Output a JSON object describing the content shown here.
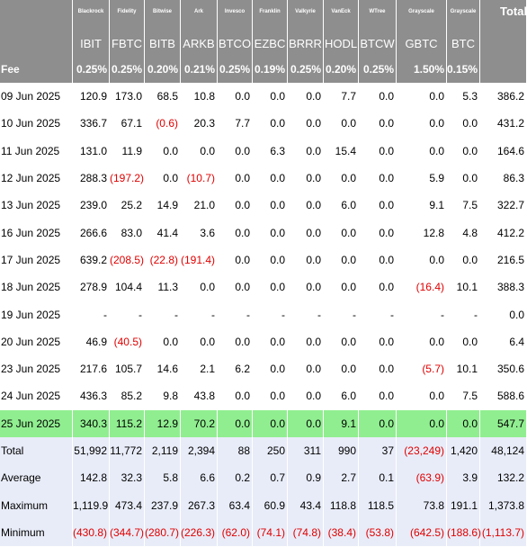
{
  "providers": [
    "Blackrock",
    "Fidelity",
    "Bitwise",
    "Ark",
    "Invesco",
    "Franklin",
    "Valkyrie",
    "VanEck",
    "WTree",
    "Grayscale",
    "Grayscale"
  ],
  "total_label": "Total",
  "tickers": [
    "IBIT",
    "FBTC",
    "BITB",
    "ARKB",
    "BTCO",
    "EZBC",
    "BRRR",
    "HODL",
    "BTCW",
    "GBTC",
    "BTC"
  ],
  "fee_label": "Fee",
  "fees": [
    "0.25%",
    "0.25%",
    "0.20%",
    "0.21%",
    "0.25%",
    "0.19%",
    "0.25%",
    "0.20%",
    "0.25%",
    "1.50%",
    "0.15%"
  ],
  "rows": [
    {
      "date": "09 Jun 2025",
      "cells": [
        "120.9",
        "173.0",
        "68.5",
        "10.8",
        "0.0",
        "0.0",
        "0.0",
        "7.7",
        "0.0",
        "0.0",
        "5.3",
        "386.2"
      ]
    },
    {
      "date": "10 Jun 2025",
      "cells": [
        "336.7",
        "67.1",
        "(0.6)",
        "20.3",
        "7.7",
        "0.0",
        "0.0",
        "0.0",
        "0.0",
        "0.0",
        "0.0",
        "431.2"
      ]
    },
    {
      "date": "11 Jun 2025",
      "cells": [
        "131.0",
        "11.9",
        "0.0",
        "0.0",
        "0.0",
        "6.3",
        "0.0",
        "15.4",
        "0.0",
        "0.0",
        "0.0",
        "164.6"
      ]
    },
    {
      "date": "12 Jun 2025",
      "cells": [
        "288.3",
        "(197.2)",
        "0.0",
        "(10.7)",
        "0.0",
        "0.0",
        "0.0",
        "0.0",
        "0.0",
        "5.9",
        "0.0",
        "86.3"
      ]
    },
    {
      "date": "13 Jun 2025",
      "cells": [
        "239.0",
        "25.2",
        "14.9",
        "21.0",
        "0.0",
        "0.0",
        "0.0",
        "6.0",
        "0.0",
        "9.1",
        "7.5",
        "322.7"
      ]
    },
    {
      "date": "16 Jun 2025",
      "cells": [
        "266.6",
        "83.0",
        "41.4",
        "3.6",
        "0.0",
        "0.0",
        "0.0",
        "0.0",
        "0.0",
        "12.8",
        "4.8",
        "412.2"
      ]
    },
    {
      "date": "17 Jun 2025",
      "cells": [
        "639.2",
        "(208.5)",
        "(22.8)",
        "(191.4)",
        "0.0",
        "0.0",
        "0.0",
        "0.0",
        "0.0",
        "0.0",
        "0.0",
        "216.5"
      ]
    },
    {
      "date": "18 Jun 2025",
      "cells": [
        "278.9",
        "104.4",
        "11.3",
        "0.0",
        "0.0",
        "0.0",
        "0.0",
        "0.0",
        "0.0",
        "(16.4)",
        "10.1",
        "388.3"
      ]
    },
    {
      "date": "19 Jun 2025",
      "cells": [
        "-",
        "-",
        "-",
        "-",
        "-",
        "-",
        "-",
        "-",
        "-",
        "-",
        "-",
        "0.0"
      ]
    },
    {
      "date": "20 Jun 2025",
      "cells": [
        "46.9",
        "(40.5)",
        "0.0",
        "0.0",
        "0.0",
        "0.0",
        "0.0",
        "0.0",
        "0.0",
        "0.0",
        "0.0",
        "6.4"
      ]
    },
    {
      "date": "23 Jun 2025",
      "cells": [
        "217.6",
        "105.7",
        "14.6",
        "2.1",
        "6.2",
        "0.0",
        "0.0",
        "0.0",
        "0.0",
        "(5.7)",
        "10.1",
        "350.6"
      ]
    },
    {
      "date": "24 Jun 2025",
      "cells": [
        "436.3",
        "85.2",
        "9.8",
        "43.8",
        "0.0",
        "0.0",
        "0.0",
        "6.0",
        "0.0",
        "0.0",
        "7.5",
        "588.6"
      ]
    },
    {
      "date": "25 Jun 2025",
      "cells": [
        "340.3",
        "115.2",
        "12.9",
        "70.2",
        "0.0",
        "0.0",
        "0.0",
        "9.1",
        "0.0",
        "0.0",
        "0.0",
        "547.7"
      ],
      "highlight": true
    }
  ],
  "summary": [
    {
      "label": "Total",
      "cells": [
        "51,992",
        "11,772",
        "2,119",
        "2,394",
        "88",
        "250",
        "311",
        "990",
        "37",
        "(23,249)",
        "1,420",
        "48,124"
      ]
    },
    {
      "label": "Average",
      "cells": [
        "142.8",
        "32.3",
        "5.8",
        "6.6",
        "0.2",
        "0.7",
        "0.9",
        "2.7",
        "0.1",
        "(63.9)",
        "3.9",
        "132.2"
      ]
    },
    {
      "label": "Maximum",
      "cells": [
        "1,119.9",
        "473.4",
        "237.9",
        "267.3",
        "63.4",
        "60.9",
        "43.4",
        "118.8",
        "118.5",
        "73.8",
        "191.1",
        "1,373.8"
      ]
    },
    {
      "label": "Minimum",
      "cells": [
        "(430.8)",
        "(344.7)",
        "(280.7)",
        "(226.3)",
        "(62.0)",
        "(74.1)",
        "(74.8)",
        "(38.4)",
        "(53.8)",
        "(642.5)",
        "(188.6)",
        "(1,113.7)"
      ]
    }
  ],
  "colors": {
    "header_bg": "#8e8e8e",
    "negative": "#e00000",
    "highlight": "#90ee90",
    "summary_bg": "#e8ecf8"
  }
}
